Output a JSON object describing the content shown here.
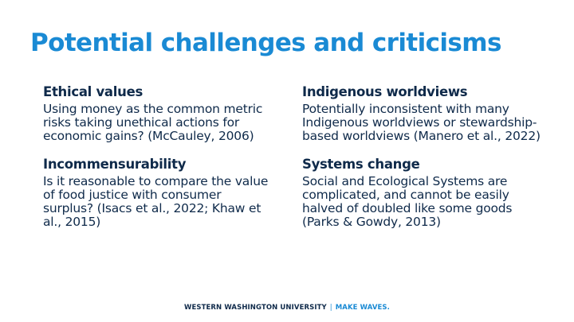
{
  "slide": {
    "title": "Potential challenges and criticisms",
    "left_column": [
      {
        "heading": "Ethical values",
        "body": "Using money as the common metric risks taking unethical actions for economic gains? (McCauley, 2006)"
      },
      {
        "heading": "Incommensurability",
        "body": "Is it reasonable to compare the value of food justice with consumer surplus? (Isacs et al., 2022; Khaw et al., 2015)"
      }
    ],
    "right_column": [
      {
        "heading": "Indigenous worldviews",
        "body": "Potentially inconsistent with many Indigenous worldviews or stewardship-based worldviews (Manero et al., 2022)"
      },
      {
        "heading": "Systems change",
        "body": "Social and Ecological Systems are complicated, and cannot be easily halved of doubled like some goods (Parks & Gowdy, 2013)"
      }
    ]
  },
  "footer": {
    "university": "WESTERN WASHINGTON UNIVERSITY",
    "divider": "|",
    "tagline": "MAKE WAVES."
  },
  "colors": {
    "title": "#1a8ad4",
    "text": "#0f2a4a",
    "accent": "#1a8ad4",
    "background": "#ffffff"
  }
}
